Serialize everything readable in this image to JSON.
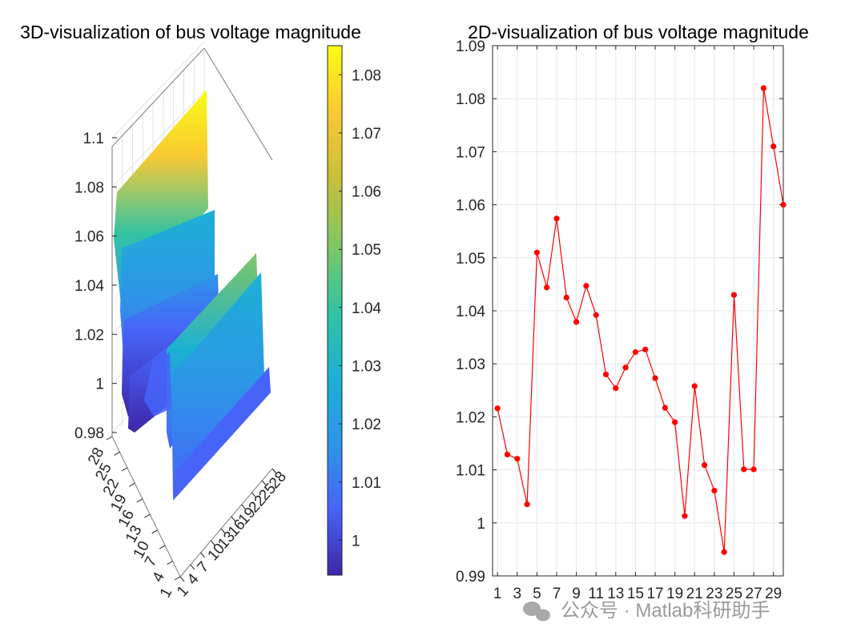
{
  "chart_data": [
    {
      "type": "surface",
      "title": "3D-visualization of bus voltage magnitude",
      "zlim": [
        0.98,
        1.1
      ],
      "z_ticks": [
        "0.98",
        "1",
        "1.02",
        "1.04",
        "1.06",
        "1.08",
        "1.1"
      ],
      "y_ticks": [
        "1",
        "4",
        "7",
        "10",
        "13",
        "16",
        "19",
        "22",
        "25",
        "28"
      ],
      "x_ticks": [
        "1",
        "4",
        "7",
        "10",
        "13",
        "16",
        "19",
        "22",
        "25",
        "28"
      ],
      "grid": true,
      "colormap": "parula",
      "colorbar": {
        "range": [
          0.994,
          1.085
        ],
        "ticks": [
          "1",
          "1.01",
          "1.02",
          "1.03",
          "1.04",
          "1.05",
          "1.06",
          "1.07",
          "1.08"
        ],
        "tick_values": [
          1.0,
          1.01,
          1.02,
          1.03,
          1.04,
          1.05,
          1.06,
          1.07,
          1.08
        ],
        "colors": [
          "#3e26a8",
          "#4764f9",
          "#2d96e7",
          "#1bb1d3",
          "#33c4a3",
          "#80c763",
          "#c8bf38",
          "#f9c933",
          "#f9fb15"
        ]
      }
    },
    {
      "type": "line",
      "title": "2D-visualization of bus voltage magnitude",
      "x": [
        1,
        2,
        3,
        4,
        5,
        6,
        7,
        8,
        9,
        10,
        11,
        12,
        13,
        14,
        15,
        16,
        17,
        18,
        19,
        20,
        21,
        22,
        23,
        24,
        25,
        26,
        27,
        28,
        29,
        30
      ],
      "values": [
        1.0216,
        1.0129,
        1.0121,
        1.0035,
        1.051,
        1.0444,
        1.0574,
        1.0425,
        1.0379,
        1.0447,
        1.0392,
        1.028,
        1.0254,
        1.0293,
        1.0322,
        1.0327,
        1.0273,
        1.0217,
        1.019,
        1.0013,
        1.0258,
        1.0109,
        1.0061,
        0.9945,
        1.043,
        1.0101,
        1.0101,
        1.082,
        1.071,
        1.06
      ],
      "x_ticks": [
        "1",
        "3",
        "5",
        "7",
        "9",
        "11",
        "13",
        "15",
        "17",
        "19",
        "21",
        "23",
        "25",
        "27",
        "29"
      ],
      "x_tick_values": [
        1,
        3,
        5,
        7,
        9,
        11,
        13,
        15,
        17,
        19,
        21,
        23,
        25,
        27,
        29
      ],
      "xlim": [
        0.5,
        30
      ],
      "ylim": [
        0.99,
        1.09
      ],
      "y_ticks": [
        "0.99",
        "1",
        "1.01",
        "1.02",
        "1.03",
        "1.04",
        "1.05",
        "1.06",
        "1.07",
        "1.08",
        "1.09"
      ],
      "y_tick_values": [
        0.99,
        1.0,
        1.01,
        1.02,
        1.03,
        1.04,
        1.05,
        1.06,
        1.07,
        1.08,
        1.09
      ],
      "grid": true,
      "line_color": "#ff0000",
      "marker": "filled circle"
    }
  ],
  "watermark": {
    "text": "公众号 · Matlab科研助手",
    "icon": "wechat-icon"
  }
}
